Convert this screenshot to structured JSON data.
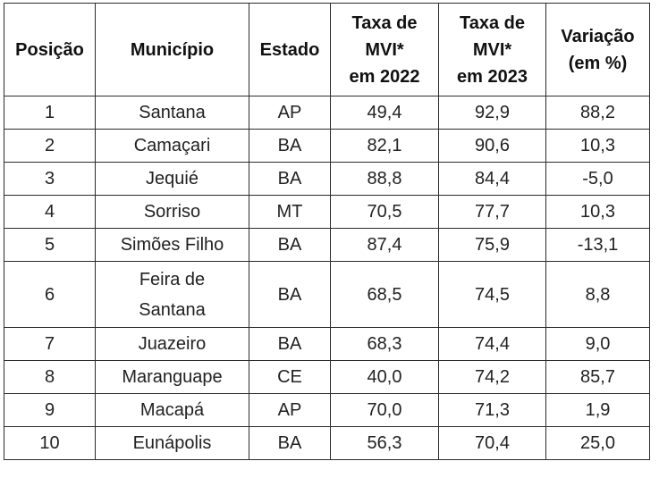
{
  "table": {
    "headers": [
      {
        "key": "posicao",
        "lines": [
          "Posição"
        ]
      },
      {
        "key": "municipio",
        "lines": [
          "Município"
        ]
      },
      {
        "key": "estado",
        "lines": [
          "Estado"
        ]
      },
      {
        "key": "taxa_2022",
        "lines": [
          "Taxa de",
          "MVI*",
          "em 2022"
        ]
      },
      {
        "key": "taxa_2023",
        "lines": [
          "Taxa de",
          "MVI*",
          "em 2023"
        ]
      },
      {
        "key": "variacao",
        "lines": [
          "Variação",
          "(em %)"
        ]
      }
    ],
    "rows": [
      {
        "posicao": "1",
        "municipio": [
          "Santana"
        ],
        "estado": "AP",
        "taxa_2022": "49,4",
        "taxa_2023": "92,9",
        "variacao": "88,2"
      },
      {
        "posicao": "2",
        "municipio": [
          "Camaçari"
        ],
        "estado": "BA",
        "taxa_2022": "82,1",
        "taxa_2023": "90,6",
        "variacao": "10,3"
      },
      {
        "posicao": "3",
        "municipio": [
          "Jequié"
        ],
        "estado": "BA",
        "taxa_2022": "88,8",
        "taxa_2023": "84,4",
        "variacao": "-5,0"
      },
      {
        "posicao": "4",
        "municipio": [
          "Sorriso"
        ],
        "estado": "MT",
        "taxa_2022": "70,5",
        "taxa_2023": "77,7",
        "variacao": "10,3"
      },
      {
        "posicao": "5",
        "municipio": [
          "Simões Filho"
        ],
        "estado": "BA",
        "taxa_2022": "87,4",
        "taxa_2023": "75,9",
        "variacao": "-13,1"
      },
      {
        "posicao": "6",
        "municipio": [
          "Feira de",
          "Santana"
        ],
        "estado": "BA",
        "taxa_2022": "68,5",
        "taxa_2023": "74,5",
        "variacao": "8,8"
      },
      {
        "posicao": "7",
        "municipio": [
          "Juazeiro"
        ],
        "estado": "BA",
        "taxa_2022": "68,3",
        "taxa_2023": "74,4",
        "variacao": "9,0"
      },
      {
        "posicao": "8",
        "municipio": [
          "Maranguape"
        ],
        "estado": "CE",
        "taxa_2022": "40,0",
        "taxa_2023": "74,2",
        "variacao": "85,7"
      },
      {
        "posicao": "9",
        "municipio": [
          "Macapá"
        ],
        "estado": "AP",
        "taxa_2022": "70,0",
        "taxa_2023": "71,3",
        "variacao": "1,9"
      },
      {
        "posicao": "10",
        "municipio": [
          "Eunápolis"
        ],
        "estado": "BA",
        "taxa_2022": "56,3",
        "taxa_2023": "70,4",
        "variacao": "25,0"
      }
    ]
  }
}
